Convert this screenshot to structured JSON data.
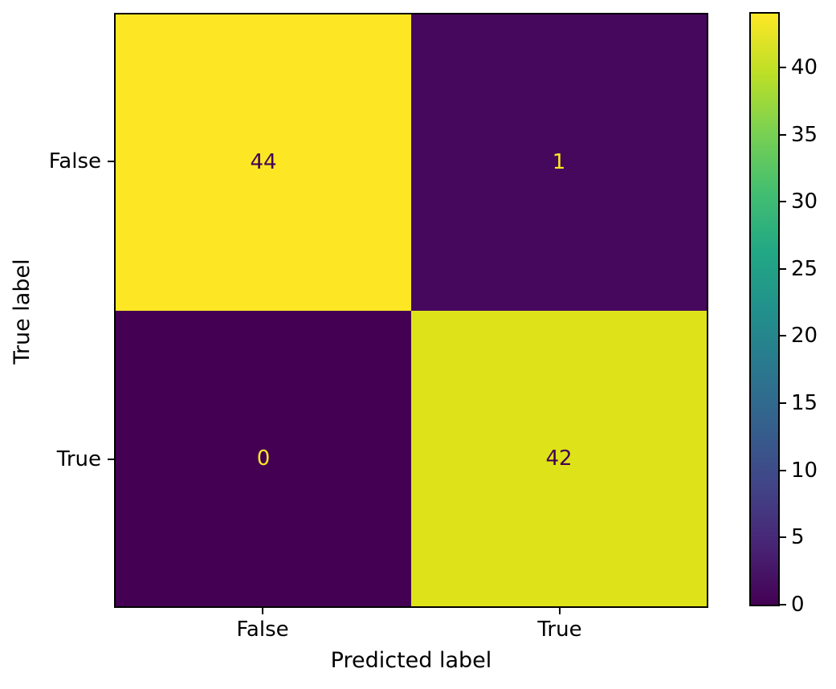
{
  "chart_data": {
    "type": "heatmap",
    "title": "",
    "xlabel": "Predicted label",
    "ylabel": "True label",
    "x_ticklabels": [
      "False",
      "True"
    ],
    "y_ticklabels": [
      "False",
      "True"
    ],
    "matrix": [
      [
        44,
        1
      ],
      [
        0,
        42
      ]
    ],
    "vmin": 0,
    "vmax": 44,
    "colormap": "viridis",
    "colorbar_ticks": [
      0,
      5,
      10,
      15,
      20,
      25,
      30,
      35,
      40
    ],
    "cell_colors": [
      [
        "#fde725",
        "#46085c"
      ],
      [
        "#440154",
        "#dde318"
      ]
    ],
    "cell_text_colors": [
      [
        "#440154",
        "#fde725"
      ],
      [
        "#fde725",
        "#440154"
      ]
    ],
    "viridis_stops": [
      "#440154",
      "#482475",
      "#414487",
      "#355f8d",
      "#2a788e",
      "#21918c",
      "#22a884",
      "#44bf70",
      "#7ad151",
      "#bddf26",
      "#fde725"
    ],
    "spine_color": "#000000",
    "background_color": "#ffffff"
  }
}
